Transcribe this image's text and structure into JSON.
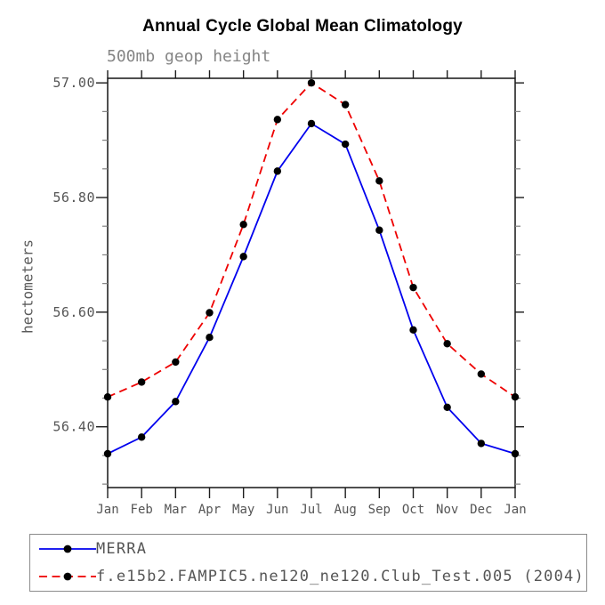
{
  "chart_data": {
    "type": "line",
    "title": "Annual Cycle Global Mean Climatology",
    "subtitle": "500mb geop height",
    "ylabel": "hectometers",
    "xlabel": "",
    "x_tick_labels": [
      "Jan",
      "Feb",
      "Mar",
      "Apr",
      "May",
      "Jun",
      "Jul",
      "Aug",
      "Sep",
      "Oct",
      "Nov",
      "Dec",
      "Jan"
    ],
    "y_ticks": [
      56.4,
      56.6,
      56.8,
      57.0
    ],
    "y_tick_labels": [
      "56.40",
      "56.60",
      "56.80",
      "57.00"
    ],
    "y_minor_step": 0.05,
    "ylim": [
      56.294,
      57.008
    ],
    "grid": false,
    "legend_position": "bottom",
    "marker": "filled-circle",
    "marker_color": "#000000",
    "series": [
      {
        "name": "MERRA",
        "color": "#0000ee",
        "style": "solid",
        "values": [
          56.353,
          56.382,
          56.444,
          56.556,
          56.697,
          56.846,
          56.929,
          56.893,
          56.743,
          56.569,
          56.434,
          56.371,
          56.353
        ]
      },
      {
        "name": "f.e15b2.FAMPIC5.ne120_ne120.Club_Test.005 (2004)",
        "color": "#ee0000",
        "style": "dashed",
        "values": [
          56.452,
          56.478,
          56.513,
          56.599,
          56.753,
          56.936,
          57.0,
          56.962,
          56.829,
          56.643,
          56.545,
          56.492,
          56.452
        ]
      }
    ]
  }
}
